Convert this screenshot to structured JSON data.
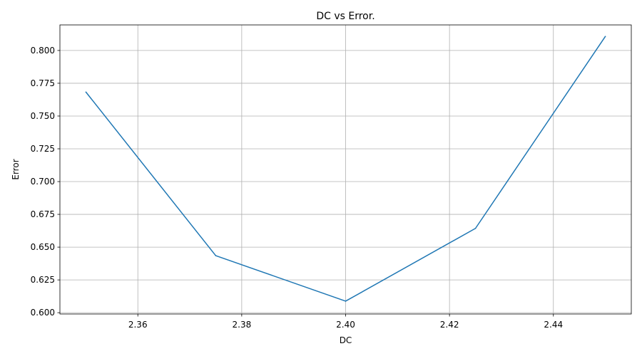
{
  "chart_data": {
    "type": "line",
    "title": "DC vs Error.",
    "xlabel": "DC",
    "ylabel": "Error",
    "grid": true,
    "x": [
      2.35,
      2.375,
      2.4,
      2.425,
      2.45
    ],
    "series": [
      {
        "name": "Error",
        "color": "#1f77b4",
        "values": [
          0.7683,
          0.6435,
          0.6088,
          0.6643,
          0.8107
        ]
      }
    ],
    "xlim": [
      2.345,
      2.455
    ],
    "ylim": [
      0.599,
      0.8195
    ],
    "xticks": [
      2.36,
      2.38,
      2.4,
      2.42,
      2.44
    ],
    "xtick_labels": [
      "2.36",
      "2.38",
      "2.40",
      "2.42",
      "2.44"
    ],
    "yticks": [
      0.6,
      0.625,
      0.65,
      0.675,
      0.7,
      0.725,
      0.75,
      0.775,
      0.8
    ],
    "ytick_labels": [
      "0.600",
      "0.625",
      "0.650",
      "0.675",
      "0.700",
      "0.725",
      "0.750",
      "0.775",
      "0.800"
    ]
  }
}
